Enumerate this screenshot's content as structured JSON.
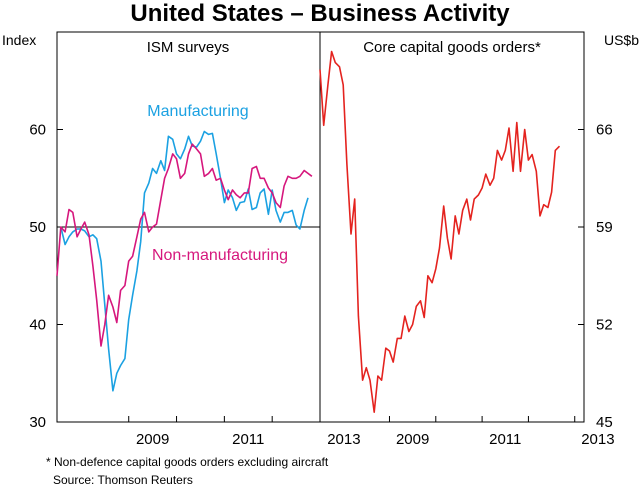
{
  "chart_data": {
    "type": "line",
    "title": "United States – Business Activity",
    "left_unit": "Index",
    "right_unit": "US$b",
    "x_ticks": [
      "2009",
      "2011",
      "2013"
    ],
    "panels": [
      {
        "title": "ISM surveys",
        "axis": "left",
        "ylim": [
          30,
          70
        ],
        "yticks": [
          "30",
          "40",
          "50",
          "60"
        ],
        "xlim": [
          2007.5,
          2013.0
        ],
        "reference_line": 50,
        "series": [
          {
            "name": "Manufacturing",
            "color": "#1ba1e2",
            "x": [
              2007.58,
              2007.67,
              2007.75,
              2007.83,
              2007.92,
              2008.0,
              2008.08,
              2008.17,
              2008.25,
              2008.33,
              2008.42,
              2008.5,
              2008.58,
              2008.67,
              2008.75,
              2008.83,
              2008.92,
              2009.0,
              2009.08,
              2009.17,
              2009.25,
              2009.33,
              2009.42,
              2009.5,
              2009.58,
              2009.67,
              2009.75,
              2009.83,
              2009.92,
              2010.0,
              2010.08,
              2010.17,
              2010.25,
              2010.33,
              2010.42,
              2010.5,
              2010.58,
              2010.67,
              2010.75,
              2010.83,
              2010.92,
              2011.0,
              2011.08,
              2011.17,
              2011.25,
              2011.33,
              2011.42,
              2011.5,
              2011.58,
              2011.67,
              2011.75,
              2011.83,
              2011.92,
              2012.0,
              2012.08,
              2012.17,
              2012.25,
              2012.33,
              2012.42,
              2012.5,
              2012.58,
              2012.67,
              2012.75,
              2012.83,
              2012.92,
              2013.0
            ],
            "y": [
              50.0,
              48.2,
              49.0,
              49.5,
              49.8,
              49.8,
              49.6,
              49.0,
              49.2,
              48.8,
              46.5,
              42.0,
              37.5,
              33.2,
              35.0,
              35.8,
              36.5,
              40.5,
              43.0,
              45.5,
              48.5,
              53.5,
              54.5,
              56.0,
              55.5,
              56.8,
              55.8,
              59.3,
              59.0,
              57.5,
              57.0,
              58.0,
              59.3,
              58.3,
              58.2,
              58.8,
              59.8,
              59.5,
              59.6,
              57.5,
              55.0,
              52.5,
              53.8,
              53.0,
              51.7,
              52.5,
              52.6,
              53.9,
              51.8,
              52.0,
              53.5,
              53.9,
              51.3,
              53.8,
              51.7,
              50.5,
              51.5,
              51.5,
              51.7,
              50.2,
              49.8,
              51.7,
              53.0,
              null,
              null,
              null
            ]
          },
          {
            "name": "Non-manufacturing",
            "color": "#d6177d",
            "x": [
              2007.5,
              2007.58,
              2007.67,
              2007.75,
              2007.83,
              2007.92,
              2008.0,
              2008.08,
              2008.17,
              2008.25,
              2008.33,
              2008.42,
              2008.5,
              2008.58,
              2008.67,
              2008.75,
              2008.83,
              2008.92,
              2009.0,
              2009.08,
              2009.17,
              2009.25,
              2009.33,
              2009.42,
              2009.5,
              2009.58,
              2009.67,
              2009.75,
              2009.83,
              2009.92,
              2010.0,
              2010.08,
              2010.17,
              2010.25,
              2010.33,
              2010.42,
              2010.5,
              2010.58,
              2010.67,
              2010.75,
              2010.83,
              2010.92,
              2011.0,
              2011.08,
              2011.17,
              2011.25,
              2011.33,
              2011.42,
              2011.5,
              2011.58,
              2011.67,
              2011.75,
              2011.83,
              2011.92,
              2012.0,
              2012.08,
              2012.17,
              2012.25,
              2012.33,
              2012.42,
              2012.5,
              2012.58,
              2012.67,
              2012.75,
              2012.83,
              2012.92,
              2013.0
            ],
            "y": [
              45.0,
              50.0,
              49.5,
              51.8,
              51.5,
              49.0,
              49.8,
              50.5,
              49.2,
              46.0,
              42.5,
              37.8,
              40.0,
              43.0,
              41.8,
              40.2,
              43.5,
              44.0,
              46.5,
              47.0,
              49.0,
              50.8,
              51.5,
              49.5,
              50.0,
              50.3,
              52.8,
              55.0,
              56.0,
              57.5,
              57.0,
              55.0,
              55.5,
              57.5,
              58.5,
              58.0,
              57.5,
              55.2,
              55.5,
              56.0,
              54.8,
              55.0,
              53.8,
              52.8,
              53.8,
              53.3,
              53.0,
              53.5,
              53.5,
              56.0,
              56.2,
              55.0,
              55.0,
              54.0,
              53.5,
              52.5,
              52.0,
              54.2,
              55.2,
              55.0,
              55.0,
              55.2,
              55.8,
              55.5,
              55.2,
              null,
              null
            ]
          }
        ]
      },
      {
        "title": "Core capital goods orders*",
        "axis": "right",
        "ylim": [
          45,
          73
        ],
        "yticks": [
          "45",
          "52",
          "59",
          "66"
        ],
        "xlim": [
          2007.5,
          2013.2
        ],
        "series": [
          {
            "name": "Core capital goods orders",
            "color": "#e4231f",
            "x": [
              2007.5,
              2007.58,
              2007.67,
              2007.75,
              2007.83,
              2007.92,
              2008.0,
              2008.08,
              2008.17,
              2008.25,
              2008.33,
              2008.42,
              2008.5,
              2008.58,
              2008.67,
              2008.75,
              2008.83,
              2008.92,
              2009.0,
              2009.08,
              2009.17,
              2009.25,
              2009.33,
              2009.42,
              2009.5,
              2009.58,
              2009.67,
              2009.75,
              2009.83,
              2009.92,
              2010.0,
              2010.08,
              2010.17,
              2010.25,
              2010.33,
              2010.42,
              2010.5,
              2010.58,
              2010.67,
              2010.75,
              2010.83,
              2010.92,
              2011.0,
              2011.08,
              2011.17,
              2011.25,
              2011.33,
              2011.42,
              2011.5,
              2011.58,
              2011.67,
              2011.75,
              2011.83,
              2011.92,
              2012.0,
              2012.08,
              2012.17,
              2012.25,
              2012.33,
              2012.42,
              2012.5,
              2012.58,
              2012.67,
              2012.75
            ],
            "y": [
              70.3,
              66.3,
              69.2,
              71.6,
              70.8,
              70.5,
              69.2,
              63.5,
              58.5,
              61.0,
              52.6,
              48.0,
              48.9,
              48.0,
              45.7,
              48.3,
              48.0,
              50.3,
              50.1,
              49.3,
              51.0,
              51.0,
              52.6,
              51.5,
              52.0,
              53.3,
              53.7,
              52.5,
              55.5,
              55.0,
              56.0,
              57.5,
              60.5,
              58.2,
              56.7,
              59.8,
              58.5,
              60.2,
              61.0,
              59.5,
              61.0,
              61.3,
              61.8,
              62.8,
              62.0,
              62.5,
              64.5,
              63.8,
              64.5,
              66.1,
              63.0,
              66.5,
              63.0,
              66.0,
              63.8,
              64.2,
              63.0,
              59.8,
              60.6,
              60.4,
              61.5,
              64.5,
              64.8,
              null
            ]
          }
        ]
      }
    ],
    "footnote": "*    Non-defence capital goods orders excluding aircraft",
    "source": "Source: Thomson Reuters"
  }
}
